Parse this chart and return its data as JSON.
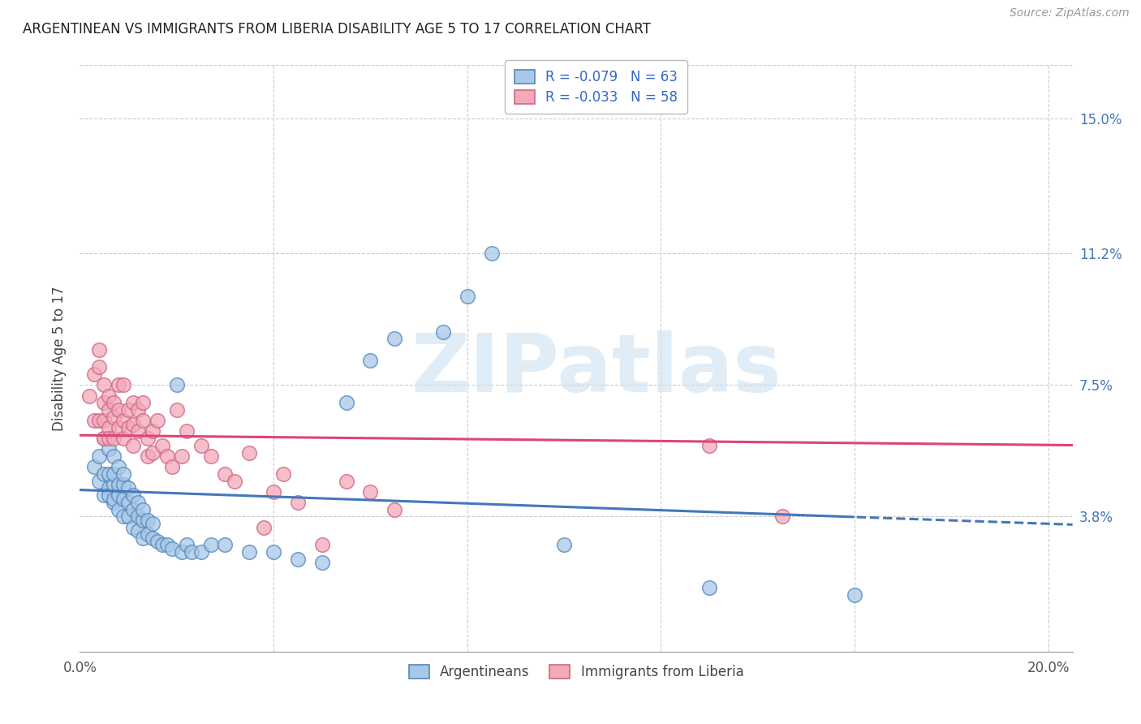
{
  "title": "ARGENTINEAN VS IMMIGRANTS FROM LIBERIA DISABILITY AGE 5 TO 17 CORRELATION CHART",
  "source": "Source: ZipAtlas.com",
  "xlim": [
    0.0,
    0.205
  ],
  "ylim": [
    0.0,
    0.165
  ],
  "x_ticks": [
    0.0,
    0.04,
    0.08,
    0.12,
    0.16,
    0.2
  ],
  "x_tick_labels": [
    "0.0%",
    "",
    "",
    "",
    "",
    "20.0%"
  ],
  "y_ticks": [
    0.038,
    0.075,
    0.112,
    0.15
  ],
  "y_tick_labels": [
    "3.8%",
    "7.5%",
    "11.2%",
    "15.0%"
  ],
  "ylabel": "Disability Age 5 to 17",
  "blue_color": "#a8c8e8",
  "blue_edge": "#5588bb",
  "pink_color": "#f4a8b8",
  "pink_edge": "#cc6688",
  "blue_line_color": "#4477bb",
  "pink_line_color": "#dd4477",
  "watermark_text": "ZIPatlas",
  "blue_R": -0.079,
  "blue_N": 63,
  "pink_R": -0.033,
  "pink_N": 58,
  "blue_x": [
    0.003,
    0.004,
    0.004,
    0.005,
    0.005,
    0.005,
    0.006,
    0.006,
    0.006,
    0.006,
    0.007,
    0.007,
    0.007,
    0.007,
    0.007,
    0.008,
    0.008,
    0.008,
    0.008,
    0.009,
    0.009,
    0.009,
    0.009,
    0.01,
    0.01,
    0.01,
    0.011,
    0.011,
    0.011,
    0.012,
    0.012,
    0.012,
    0.013,
    0.013,
    0.013,
    0.014,
    0.014,
    0.015,
    0.015,
    0.016,
    0.017,
    0.018,
    0.019,
    0.02,
    0.021,
    0.022,
    0.023,
    0.025,
    0.027,
    0.03,
    0.035,
    0.04,
    0.045,
    0.05,
    0.055,
    0.06,
    0.065,
    0.075,
    0.08,
    0.085,
    0.1,
    0.13,
    0.16
  ],
  "blue_y": [
    0.052,
    0.048,
    0.055,
    0.05,
    0.044,
    0.06,
    0.046,
    0.05,
    0.044,
    0.057,
    0.042,
    0.047,
    0.043,
    0.05,
    0.055,
    0.04,
    0.044,
    0.047,
    0.052,
    0.038,
    0.043,
    0.047,
    0.05,
    0.038,
    0.042,
    0.046,
    0.035,
    0.04,
    0.044,
    0.034,
    0.038,
    0.042,
    0.032,
    0.037,
    0.04,
    0.033,
    0.037,
    0.032,
    0.036,
    0.031,
    0.03,
    0.03,
    0.029,
    0.075,
    0.028,
    0.03,
    0.028,
    0.028,
    0.03,
    0.03,
    0.028,
    0.028,
    0.026,
    0.025,
    0.07,
    0.082,
    0.088,
    0.09,
    0.1,
    0.112,
    0.03,
    0.018,
    0.016
  ],
  "pink_x": [
    0.002,
    0.003,
    0.003,
    0.004,
    0.004,
    0.004,
    0.005,
    0.005,
    0.005,
    0.005,
    0.006,
    0.006,
    0.006,
    0.006,
    0.007,
    0.007,
    0.007,
    0.008,
    0.008,
    0.008,
    0.009,
    0.009,
    0.009,
    0.01,
    0.01,
    0.011,
    0.011,
    0.011,
    0.012,
    0.012,
    0.013,
    0.013,
    0.014,
    0.014,
    0.015,
    0.015,
    0.016,
    0.017,
    0.018,
    0.019,
    0.02,
    0.021,
    0.022,
    0.025,
    0.027,
    0.03,
    0.032,
    0.035,
    0.038,
    0.04,
    0.042,
    0.045,
    0.05,
    0.055,
    0.06,
    0.065,
    0.13,
    0.145
  ],
  "pink_y": [
    0.072,
    0.078,
    0.065,
    0.08,
    0.085,
    0.065,
    0.07,
    0.065,
    0.075,
    0.06,
    0.068,
    0.072,
    0.063,
    0.06,
    0.07,
    0.066,
    0.06,
    0.068,
    0.063,
    0.075,
    0.065,
    0.06,
    0.075,
    0.068,
    0.063,
    0.07,
    0.064,
    0.058,
    0.068,
    0.062,
    0.065,
    0.07,
    0.06,
    0.055,
    0.062,
    0.056,
    0.065,
    0.058,
    0.055,
    0.052,
    0.068,
    0.055,
    0.062,
    0.058,
    0.055,
    0.05,
    0.048,
    0.056,
    0.035,
    0.045,
    0.05,
    0.042,
    0.03,
    0.048,
    0.045,
    0.04,
    0.058,
    0.038
  ]
}
